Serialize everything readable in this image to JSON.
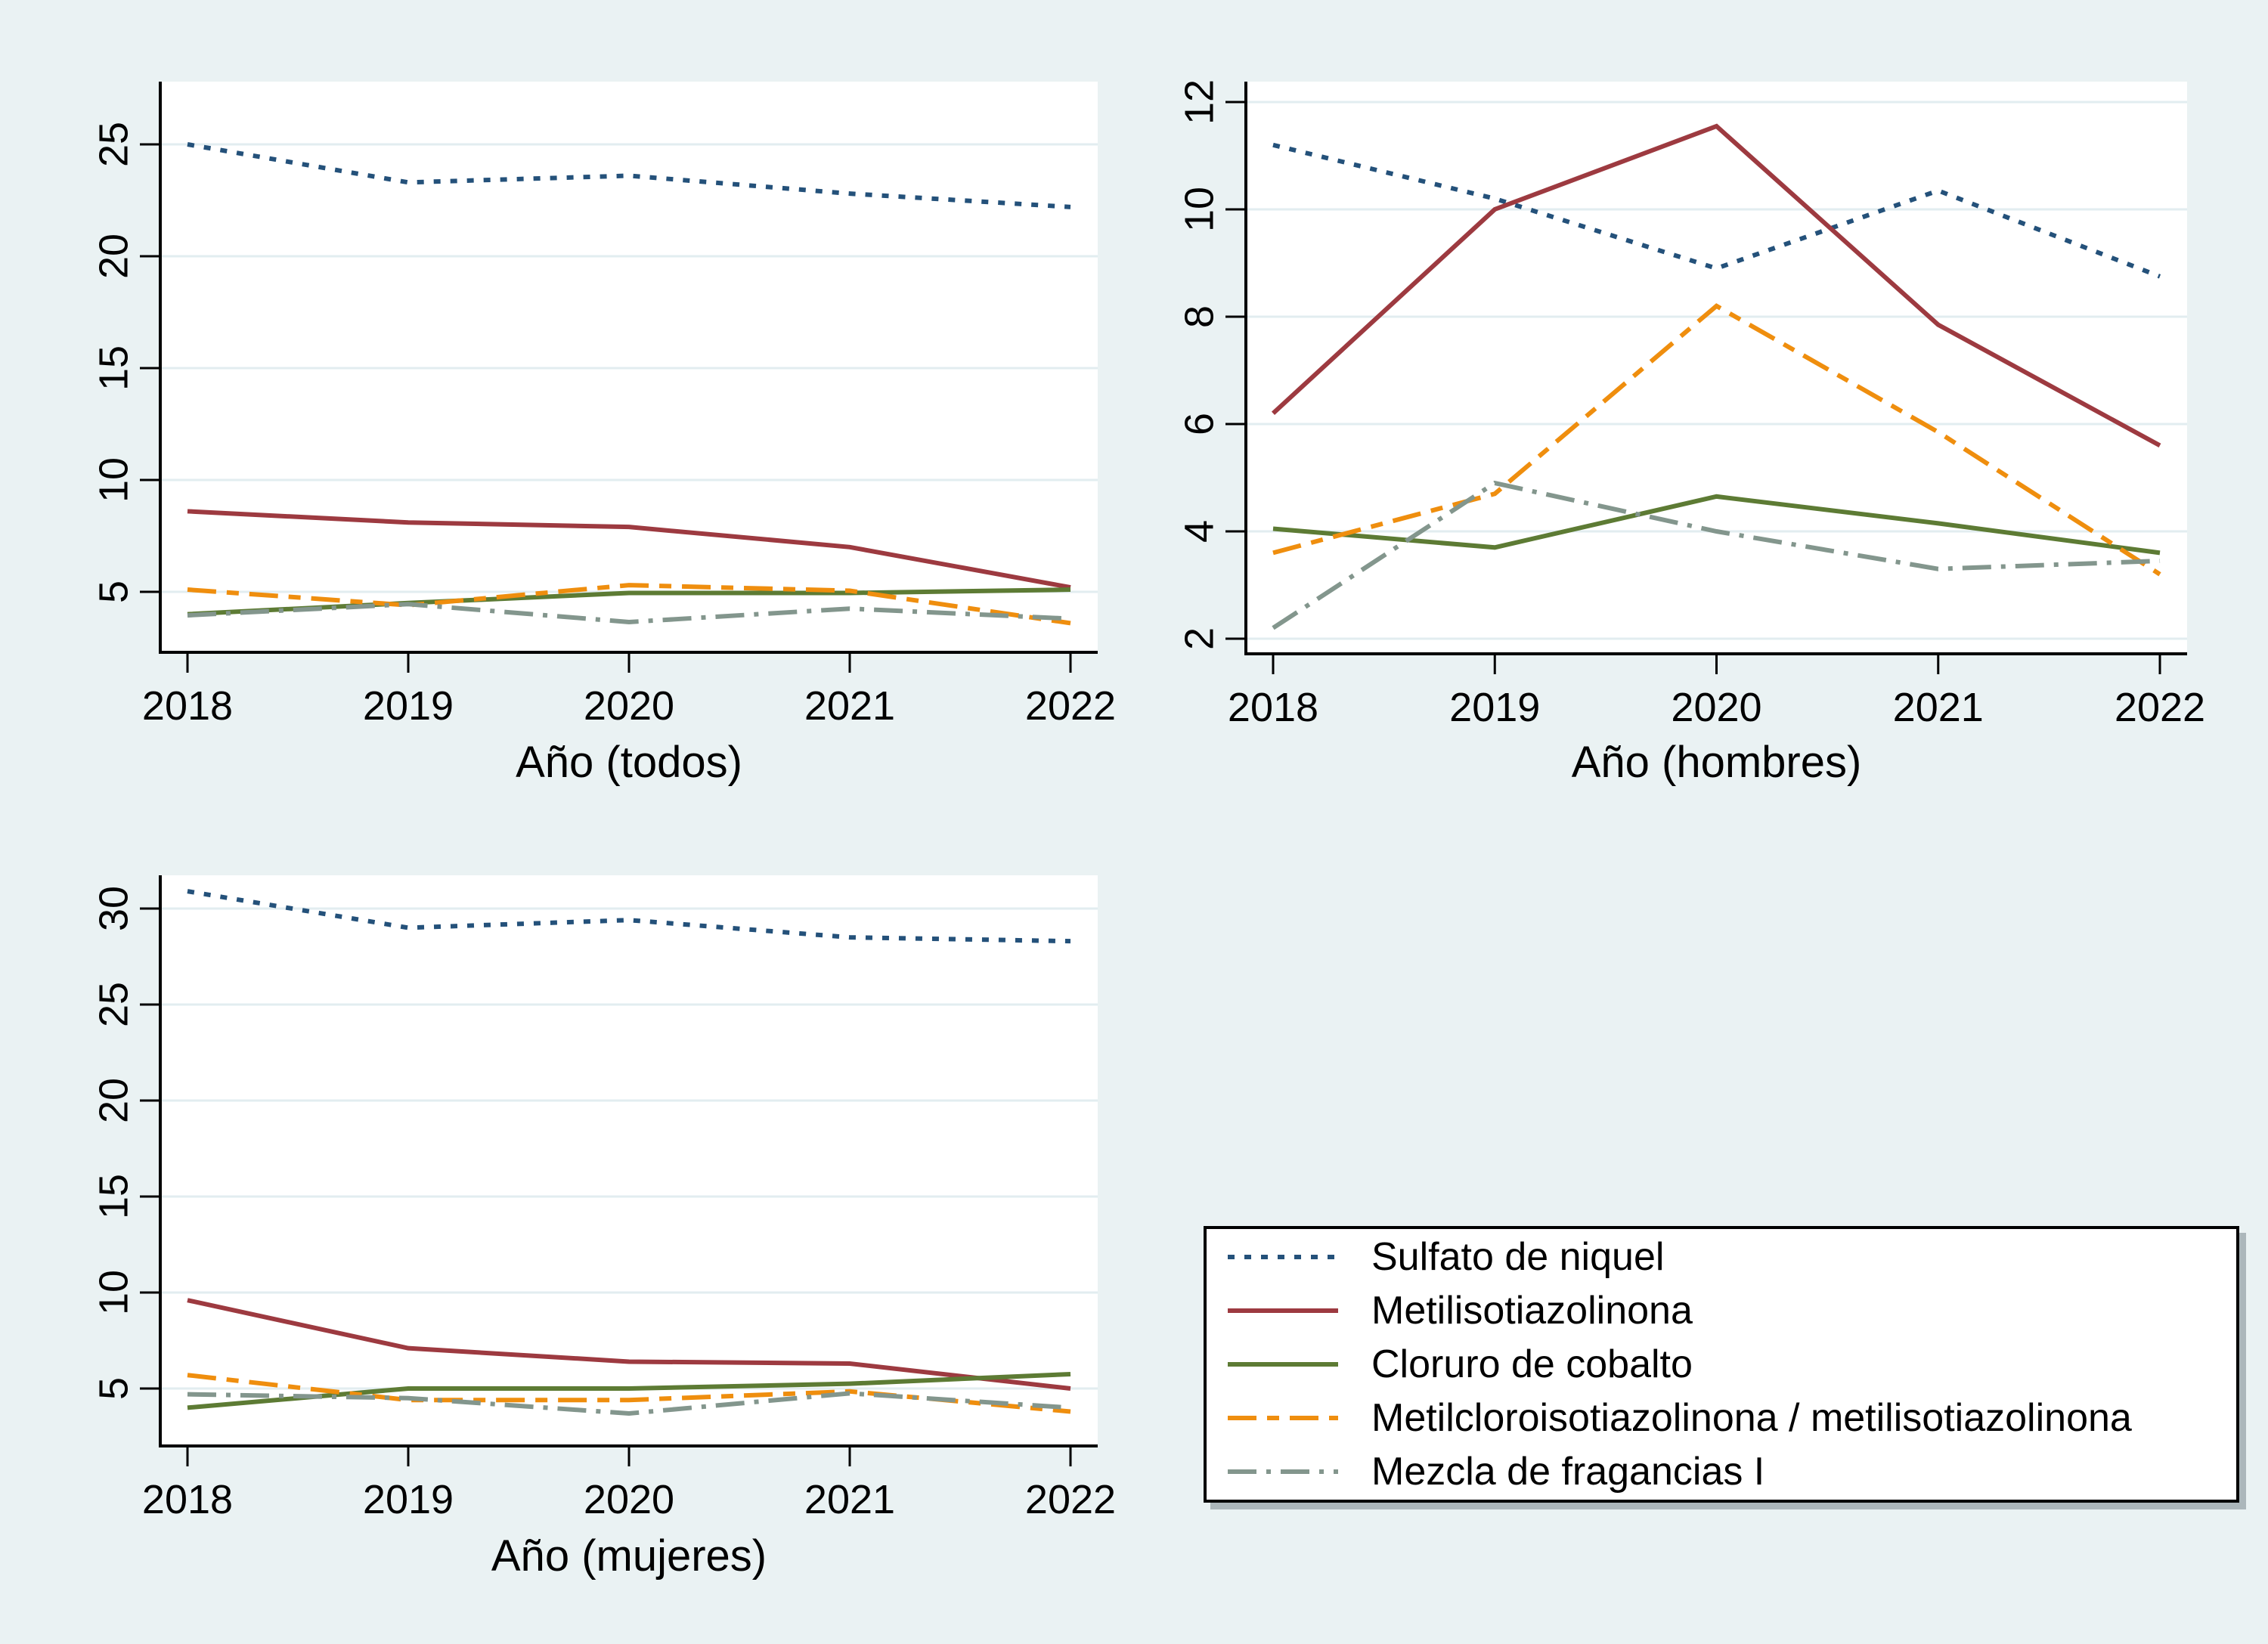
{
  "figure": {
    "background": "#eaf2f3",
    "plot_background": "#ffffff",
    "grid_color": "#e2edf0",
    "axis_color": "#000000",
    "text_color": "#000000",
    "legend_border_color": "#000000"
  },
  "series": [
    {
      "id": "sulfato",
      "label": "Sulfato de niquel",
      "color": "#24517a",
      "dash": "9 13",
      "width": 6
    },
    {
      "id": "metil",
      "label": "Metilisotiazolinona",
      "color": "#9d3a40",
      "dash": "",
      "width": 6
    },
    {
      "id": "cloruro",
      "label": "Cloruro de cobalto",
      "color": "#5d7b34",
      "dash": "",
      "width": 6
    },
    {
      "id": "mci",
      "label": "Metilcloroisotiazolinona / metilisotiazolinona",
      "color": "#ef8e0e",
      "dash": "38 14 16 14",
      "width": 6
    },
    {
      "id": "mezcla",
      "label": "Mezcla de fragancias I",
      "color": "#83968d",
      "dash": "38 13 6 13",
      "width": 6
    }
  ],
  "panels": [
    {
      "xlabel": "Año (todos)"
    },
    {
      "xlabel": "Año (hombres)"
    },
    {
      "xlabel": "Año (mujeres)"
    }
  ],
  "chart_data": [
    {
      "type": "line",
      "title": "",
      "xlabel": "Año (todos)",
      "ylabel": "",
      "x": [
        2018,
        2019,
        2020,
        2021,
        2022
      ],
      "yticks": [
        5,
        10,
        15,
        20,
        25
      ],
      "ylim": [
        2.3,
        27.8
      ],
      "grid": true,
      "series": [
        {
          "name": "Sulfato de niquel",
          "values": [
            25.0,
            23.3,
            23.6,
            22.8,
            22.2
          ]
        },
        {
          "name": "Metilisotiazolinona",
          "values": [
            8.6,
            8.1,
            7.9,
            7.0,
            5.2
          ]
        },
        {
          "name": "Cloruro de cobalto",
          "values": [
            4.0,
            4.5,
            4.95,
            4.95,
            5.1
          ]
        },
        {
          "name": "Metilcloroisotiazolinona / metilisotiazolinona",
          "values": [
            5.1,
            4.4,
            5.3,
            5.05,
            3.6
          ]
        },
        {
          "name": "Mezcla de fragancias I",
          "values": [
            3.95,
            4.45,
            3.65,
            4.25,
            3.8
          ]
        }
      ]
    },
    {
      "type": "line",
      "title": "",
      "xlabel": "Año (hombres)",
      "ylabel": "",
      "x": [
        2018,
        2019,
        2020,
        2021,
        2022
      ],
      "yticks": [
        2,
        4,
        6,
        8,
        10,
        12
      ],
      "ylim": [
        1.6,
        12.4
      ],
      "grid": true,
      "series": [
        {
          "name": "Sulfato de niquel",
          "values": [
            11.2,
            10.2,
            8.9,
            10.35,
            8.75
          ]
        },
        {
          "name": "Metilisotiazolinona",
          "values": [
            6.2,
            10.0,
            11.55,
            7.85,
            5.6
          ]
        },
        {
          "name": "Cloruro de cobalto",
          "values": [
            4.05,
            3.7,
            4.65,
            4.15,
            3.6
          ]
        },
        {
          "name": "Metilcloroisotiazolinona / metilisotiazolinona",
          "values": [
            3.6,
            4.7,
            8.2,
            5.85,
            3.2
          ]
        },
        {
          "name": "Mezcla de fragancias I",
          "values": [
            2.2,
            4.9,
            4.0,
            3.3,
            3.45
          ]
        }
      ]
    },
    {
      "type": "line",
      "title": "",
      "xlabel": "Año (mujeres)",
      "ylabel": "",
      "x": [
        2018,
        2019,
        2020,
        2021,
        2022
      ],
      "yticks": [
        5,
        10,
        15,
        20,
        25,
        30
      ],
      "ylim": [
        2.0,
        31.7
      ],
      "grid": true,
      "series": [
        {
          "name": "Sulfato de niquel",
          "values": [
            30.9,
            29.0,
            29.4,
            28.5,
            28.3
          ]
        },
        {
          "name": "Metilisotiazolinona",
          "values": [
            9.6,
            7.1,
            6.4,
            6.3,
            5.0
          ]
        },
        {
          "name": "Cloruro de cobalto",
          "values": [
            4.0,
            5.0,
            5.0,
            5.25,
            5.75
          ]
        },
        {
          "name": "Metilcloroisotiazolinona / metilisotiazolinona",
          "values": [
            5.7,
            4.4,
            4.4,
            4.85,
            3.8
          ]
        },
        {
          "name": "Mezcla de fragancias I",
          "values": [
            4.7,
            4.5,
            3.7,
            4.75,
            4.0
          ]
        }
      ]
    }
  ],
  "legend": {
    "position": "bottom-right",
    "items": [
      "Sulfato de niquel",
      "Metilisotiazolinona",
      "Cloruro de cobalto",
      "Metilcloroisotiazolinona / metilisotiazolinona",
      "Mezcla de fragancias I"
    ]
  }
}
